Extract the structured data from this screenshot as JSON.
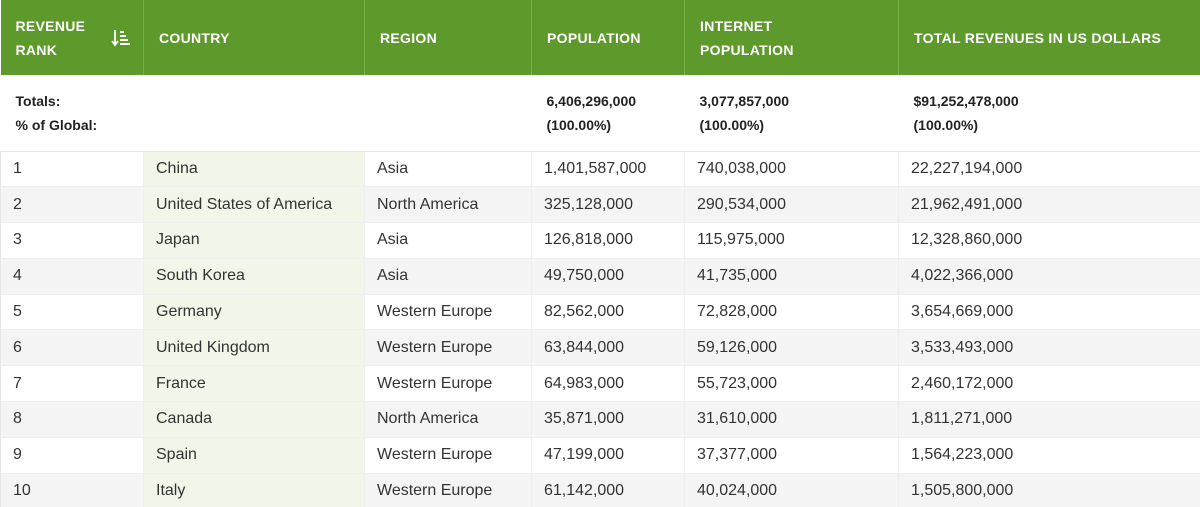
{
  "columns": {
    "rank": [
      "REVENUE",
      "RANK"
    ],
    "country": "COUNTRY",
    "region": "REGION",
    "population": "POPULATION",
    "internet": [
      "INTERNET",
      "POPULATION"
    ],
    "revenue": "TOTAL REVENUES IN US DOLLARS"
  },
  "sort_icon": "sort-descending-icon",
  "colors": {
    "header_bg": "#5e9a2b",
    "header_text": "#ffffff",
    "country_cell_bg": "#f1f6e8"
  },
  "totals": {
    "label_line1": "Totals:",
    "label_line2": "% of Global:",
    "population": "6,406,296,000",
    "population_pct": "(100.00%)",
    "internet": "3,077,857,000",
    "internet_pct": "(100.00%)",
    "revenue": "$91,252,478,000",
    "revenue_pct": "(100.00%)"
  },
  "rows": [
    {
      "rank": "1",
      "country": "China",
      "region": "Asia",
      "population": "1,401,587,000",
      "internet": "740,038,000",
      "revenue": "22,227,194,000"
    },
    {
      "rank": "2",
      "country": "United States of America",
      "region": "North America",
      "population": "325,128,000",
      "internet": "290,534,000",
      "revenue": "21,962,491,000"
    },
    {
      "rank": "3",
      "country": "Japan",
      "region": "Asia",
      "population": "126,818,000",
      "internet": "115,975,000",
      "revenue": "12,328,860,000"
    },
    {
      "rank": "4",
      "country": "South Korea",
      "region": "Asia",
      "population": "49,750,000",
      "internet": "41,735,000",
      "revenue": "4,022,366,000"
    },
    {
      "rank": "5",
      "country": "Germany",
      "region": "Western Europe",
      "population": "82,562,000",
      "internet": "72,828,000",
      "revenue": "3,654,669,000"
    },
    {
      "rank": "6",
      "country": "United Kingdom",
      "region": "Western Europe",
      "population": "63,844,000",
      "internet": "59,126,000",
      "revenue": "3,533,493,000"
    },
    {
      "rank": "7",
      "country": "France",
      "region": "Western Europe",
      "population": "64,983,000",
      "internet": "55,723,000",
      "revenue": "2,460,172,000"
    },
    {
      "rank": "8",
      "country": "Canada",
      "region": "North America",
      "population": "35,871,000",
      "internet": "31,610,000",
      "revenue": "1,811,271,000"
    },
    {
      "rank": "9",
      "country": "Spain",
      "region": "Western Europe",
      "population": "47,199,000",
      "internet": "37,377,000",
      "revenue": "1,564,223,000"
    },
    {
      "rank": "10",
      "country": "Italy",
      "region": "Western Europe",
      "population": "61,142,000",
      "internet": "40,024,000",
      "revenue": "1,505,800,000"
    }
  ]
}
